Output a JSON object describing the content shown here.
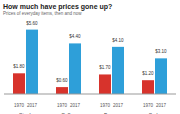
{
  "chart_data": {
    "type": "bar",
    "title": "How much have prices gone up?",
    "subtitle": "Prices of everyday items, then and now",
    "categories": [
      "Steak",
      "Coffee",
      "Burger",
      "Soda"
    ],
    "series": [
      {
        "name": "1970",
        "color": "#d7332c",
        "values": [
          1.8,
          0.6,
          1.7,
          1.2
        ],
        "value_labels": [
          "$1.80",
          "$0.60",
          "$1.70",
          "$1.20"
        ]
      },
      {
        "name": "2017",
        "color": "#2e9fd9",
        "values": [
          5.6,
          4.4,
          4.1,
          3.1
        ],
        "value_labels": [
          "$5.60",
          "$4.40",
          "$4.10",
          "$3.10"
        ]
      }
    ],
    "ylim": [
      0,
      6
    ],
    "data_labels": true,
    "tick_labels": "x"
  }
}
